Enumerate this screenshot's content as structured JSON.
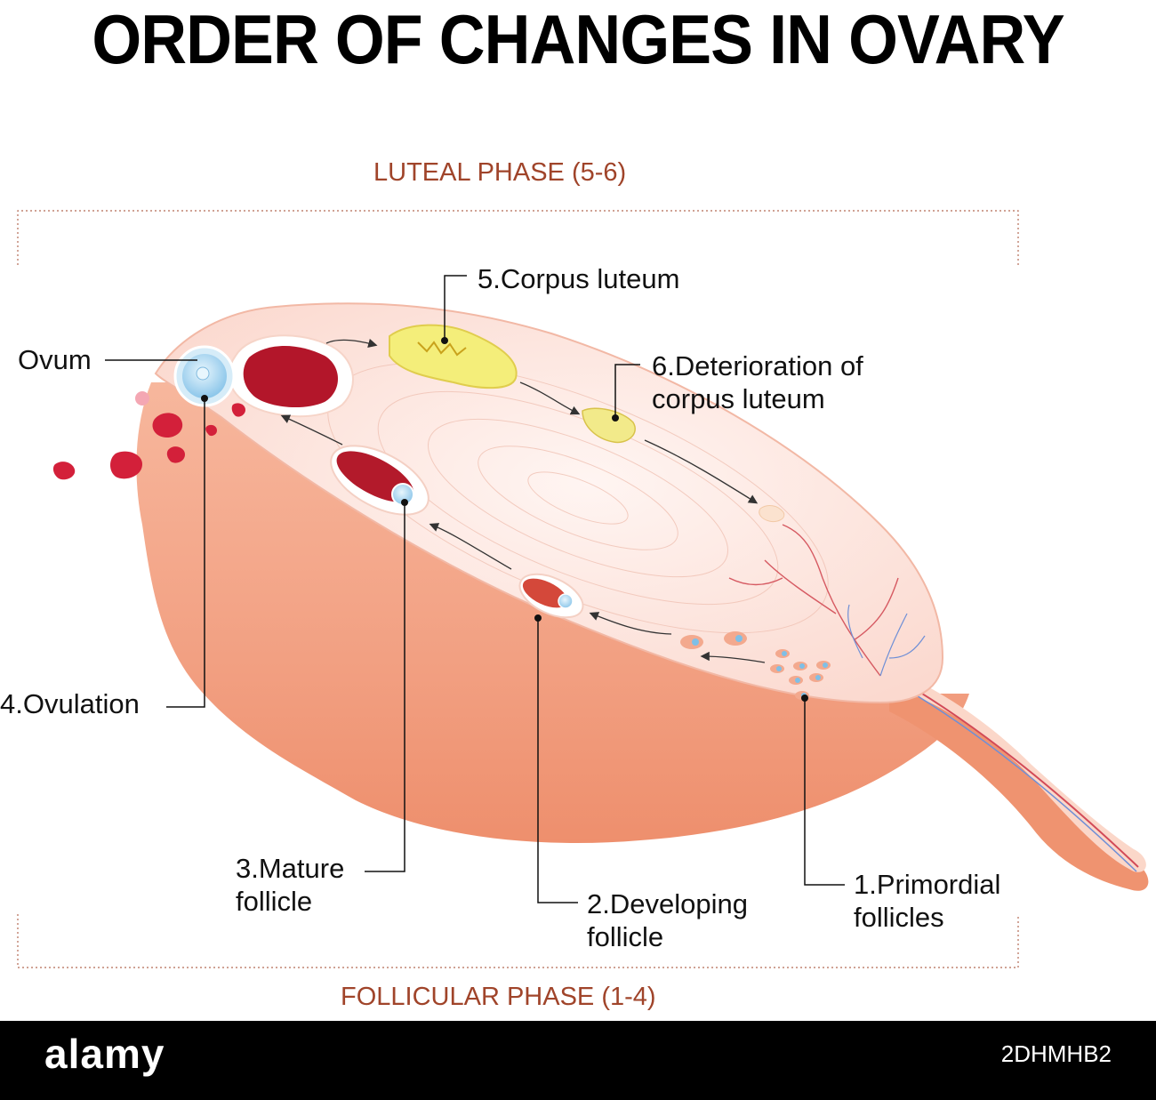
{
  "title": "ORDER OF CHANGES IN OVARY",
  "phases": {
    "luteal": "LUTEAL PHASE (5-6)",
    "follicular": "FOLLICULAR PHASE (1-4)"
  },
  "labels": {
    "ovum": "Ovum",
    "ovulation": "4.Ovulation",
    "corpus_luteum": "5.Corpus luteum",
    "deterioration_line1": "6.Deterioration of",
    "deterioration_line2": "corpus luteum",
    "mature_line1": "3.Mature",
    "mature_line2": "follicle",
    "developing_line1": "2.Developing",
    "developing_line2": "follicle",
    "primordial_line1": "1.Primordial",
    "primordial_line2": "follicles"
  },
  "watermark": {
    "brand": "alamy",
    "stock_id": "2DHMHB2"
  },
  "colors": {
    "phase_text": "#a0442a",
    "ovary_body": "#f2a382",
    "ovary_surface": "#fde6df",
    "blood": "#c41a2c",
    "corpus_luteum": "#f4ee7a",
    "ovum": "#bfe1f5"
  }
}
